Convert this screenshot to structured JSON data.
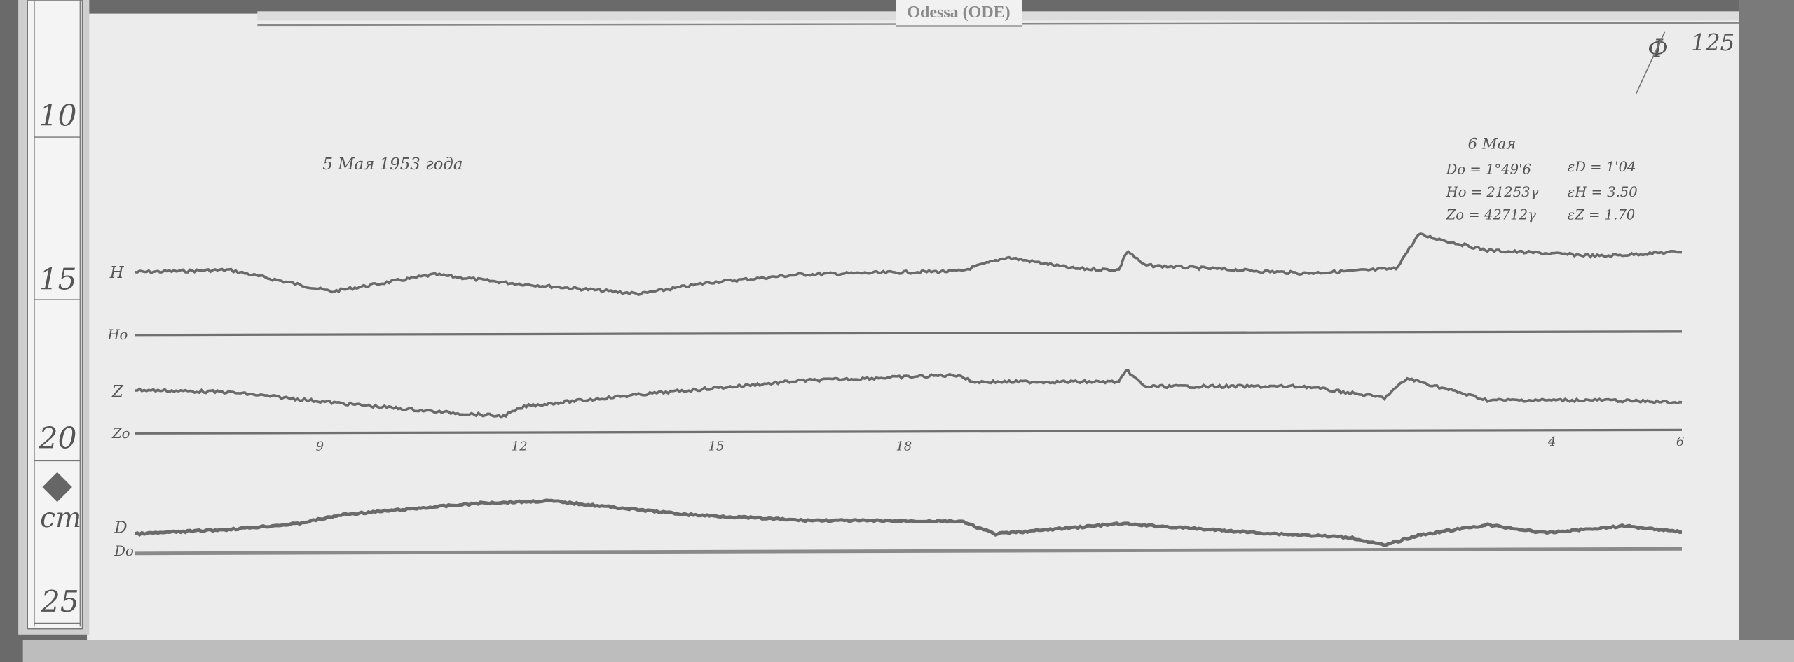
{
  "station_label": "Odessa (ODE)",
  "sheet_number": "125",
  "sheet_mark": "Ф",
  "date_title": "5 Мая 1953 года",
  "ruler": {
    "ticks": [
      "10",
      "15",
      "20",
      "25"
    ],
    "unit": "cm"
  },
  "next_day_block": {
    "date": "6 Мая",
    "D0": "Dо = 1°49'6",
    "H0": "Hо = 21253γ",
    "Z0": "Zо = 42712γ",
    "eD": "εD = 1'04",
    "eH": "εH = 3.50",
    "eZ": "εZ = 1.70"
  },
  "trace_labels": {
    "H": "H",
    "H0": "Ho",
    "Z": "Z",
    "Z0": "Zo",
    "D": "D",
    "D0": "Do"
  },
  "time_ticks": [
    "9",
    "12",
    "15",
    "18",
    "4",
    "6"
  ],
  "colors": {
    "paper": "#ececec",
    "trace": "#6a6a6a",
    "ink": "#555555",
    "background": "#5e5e5e"
  }
}
